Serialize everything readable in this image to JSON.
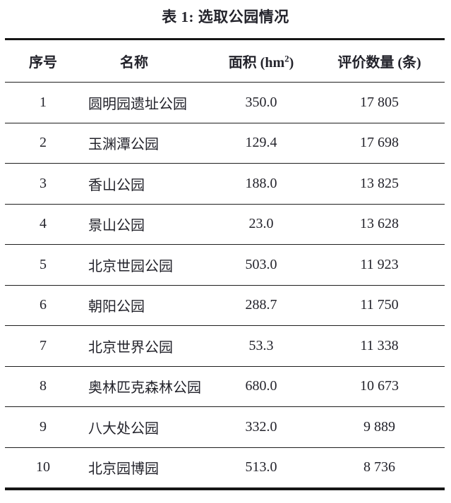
{
  "page": {
    "title": "表 1: 选取公园情况"
  },
  "table": {
    "headers": {
      "index": "序号",
      "name": "名称",
      "area_prefix": "面积 (hm",
      "area_sup": "2",
      "area_suffix": ")",
      "reviews": "评价数量 (条)"
    },
    "rows": [
      {
        "index": "1",
        "name": "圆明园遗址公园",
        "area": "350.0",
        "reviews": "17 805"
      },
      {
        "index": "2",
        "name": "玉渊潭公园",
        "area": "129.4",
        "reviews": "17 698"
      },
      {
        "index": "3",
        "name": "香山公园",
        "area": "188.0",
        "reviews": "13 825"
      },
      {
        "index": "4",
        "name": "景山公园",
        "area": "23.0",
        "reviews": "13 628"
      },
      {
        "index": "5",
        "name": "北京世园公园",
        "area": "503.0",
        "reviews": "11 923"
      },
      {
        "index": "6",
        "name": "朝阳公园",
        "area": "288.7",
        "reviews": "11 750"
      },
      {
        "index": "7",
        "name": "北京世界公园",
        "area": "53.3",
        "reviews": "11 338"
      },
      {
        "index": "8",
        "name": "奥林匹克森林公园",
        "area": "680.0",
        "reviews": "10 673"
      },
      {
        "index": "9",
        "name": "八大处公园",
        "area": "332.0",
        "reviews": "9 889"
      },
      {
        "index": "10",
        "name": "北京园博园",
        "area": "513.0",
        "reviews": "8 736"
      }
    ],
    "colors": {
      "text": "#23232b",
      "rule": "#161616",
      "background": "#ffffff"
    }
  }
}
